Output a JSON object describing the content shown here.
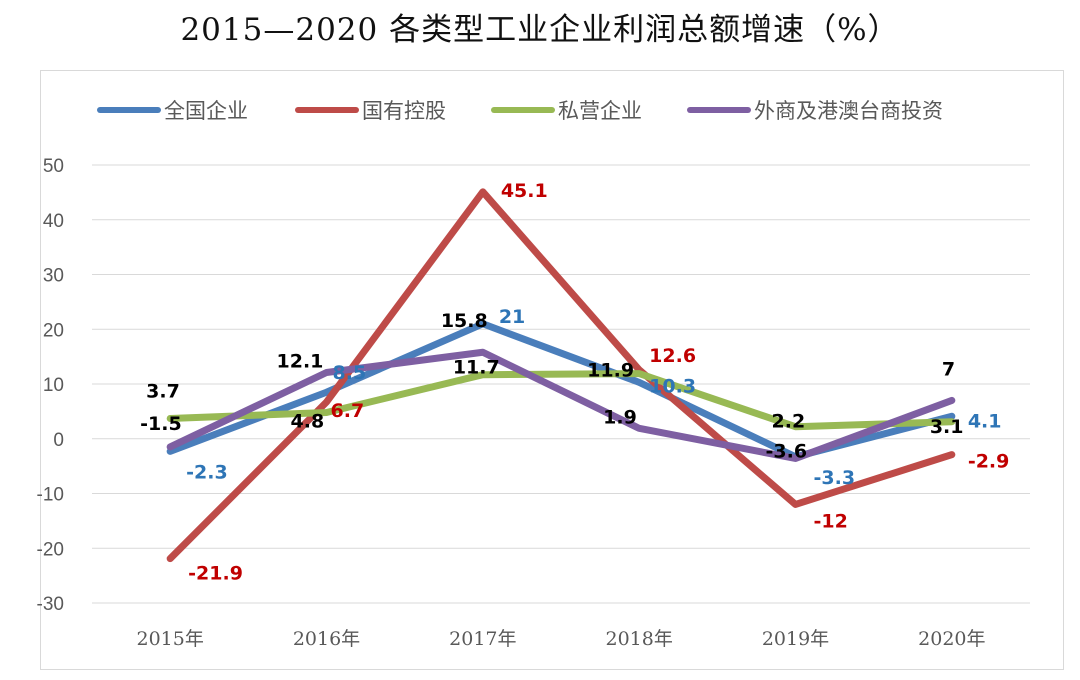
{
  "chart_data": {
    "type": "line",
    "title": "2015—2020 各类型工业企业利润总额增速（%）",
    "categories": [
      "2015年",
      "2016年",
      "2017年",
      "2018年",
      "2019年",
      "2020年"
    ],
    "ylim": [
      -30,
      50
    ],
    "yticks": [
      50,
      40,
      30,
      20,
      10,
      0,
      -10,
      -20,
      -30
    ],
    "grid": true,
    "legend": "top",
    "series": [
      {
        "name": "全国企业",
        "color": "#4a7ebb",
        "label_color": "#2e75b6",
        "values": [
          -2.3,
          8.5,
          21,
          10.3,
          -3.3,
          4.1
        ]
      },
      {
        "name": "国有控股",
        "color": "#be4b48",
        "label_color": "#c00000",
        "values": [
          -21.9,
          6.7,
          45.1,
          12.6,
          -12,
          -2.9
        ]
      },
      {
        "name": "私营企业",
        "color": "#98b954",
        "label_color": "#000000",
        "values": [
          3.7,
          4.8,
          11.7,
          11.9,
          2.2,
          3.1
        ]
      },
      {
        "name": "外商及港澳台商投资",
        "color": "#7e5fa2",
        "label_color": "#000000",
        "values": [
          -1.5,
          12.1,
          15.8,
          1.9,
          -3.6,
          7
        ]
      }
    ]
  }
}
